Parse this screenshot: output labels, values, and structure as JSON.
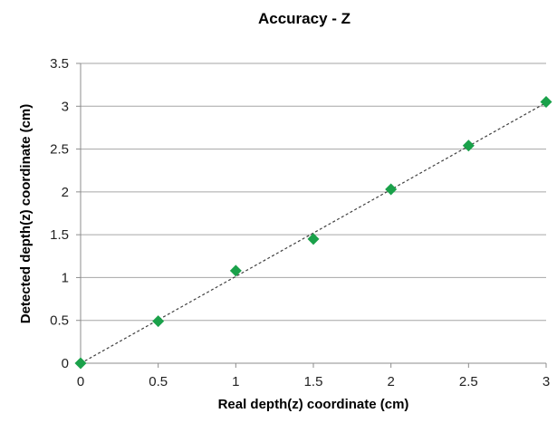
{
  "chart_data": {
    "type": "scatter",
    "title": "Accuracy - Z",
    "xlabel": "Real depth(z) coordinate (cm)",
    "ylabel": "Detected depth(z) coordinate (cm)",
    "xlim": [
      0,
      3
    ],
    "ylim": [
      0,
      3.5
    ],
    "xticks": [
      "0",
      "0.5",
      "1",
      "1.5",
      "2",
      "2.5",
      "3"
    ],
    "yticks": [
      "0",
      "0.5",
      "1",
      "1.5",
      "2",
      "2.5",
      "3",
      "3.5"
    ],
    "grid": "horizontal",
    "marker": "diamond",
    "marker_color": "#1aa14a",
    "trendline": "linear",
    "series": [
      {
        "x": [
          0,
          0.5,
          1,
          1.5,
          2,
          2.5,
          3
        ],
        "y": [
          0,
          0.49,
          1.08,
          1.45,
          2.03,
          2.54,
          3.05
        ]
      }
    ]
  }
}
